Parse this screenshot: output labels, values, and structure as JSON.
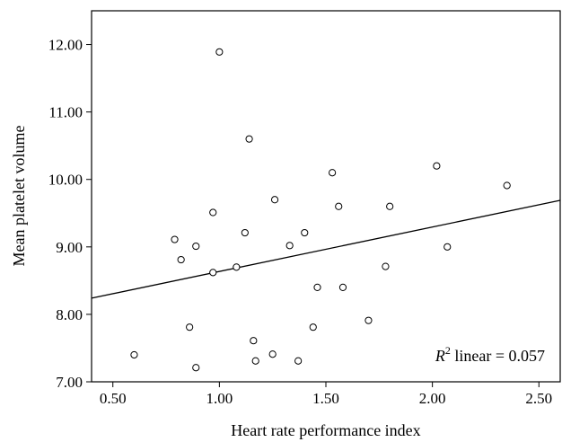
{
  "chart_data": {
    "type": "scatter",
    "title": "",
    "xlabel": "Heart rate performance index",
    "ylabel": "Mean platelet volume",
    "xlim": [
      0.4,
      2.6
    ],
    "ylim": [
      7.0,
      12.5
    ],
    "x_ticks": [
      "0.50",
      "1.00",
      "1.50",
      "2.00",
      "2.50"
    ],
    "y_ticks": [
      "7.00",
      "8.00",
      "9.00",
      "10.00",
      "11.00",
      "12.00"
    ],
    "grid": false,
    "marker": "open-circle",
    "points": [
      {
        "x": 0.6,
        "y": 7.4
      },
      {
        "x": 0.79,
        "y": 9.11
      },
      {
        "x": 0.82,
        "y": 8.81
      },
      {
        "x": 0.86,
        "y": 7.81
      },
      {
        "x": 0.89,
        "y": 9.01
      },
      {
        "x": 0.89,
        "y": 7.21
      },
      {
        "x": 0.97,
        "y": 9.51
      },
      {
        "x": 0.97,
        "y": 8.62
      },
      {
        "x": 1.0,
        "y": 11.89
      },
      {
        "x": 1.08,
        "y": 8.7
      },
      {
        "x": 1.12,
        "y": 9.21
      },
      {
        "x": 1.14,
        "y": 10.6
      },
      {
        "x": 1.16,
        "y": 7.61
      },
      {
        "x": 1.17,
        "y": 7.31
      },
      {
        "x": 1.25,
        "y": 7.41
      },
      {
        "x": 1.26,
        "y": 9.7
      },
      {
        "x": 1.33,
        "y": 9.02
      },
      {
        "x": 1.37,
        "y": 7.31
      },
      {
        "x": 1.4,
        "y": 9.21
      },
      {
        "x": 1.44,
        "y": 7.81
      },
      {
        "x": 1.46,
        "y": 8.4
      },
      {
        "x": 1.53,
        "y": 10.1
      },
      {
        "x": 1.56,
        "y": 9.6
      },
      {
        "x": 1.58,
        "y": 8.4
      },
      {
        "x": 1.7,
        "y": 7.91
      },
      {
        "x": 1.78,
        "y": 8.71
      },
      {
        "x": 1.8,
        "y": 9.6
      },
      {
        "x": 2.02,
        "y": 10.2
      },
      {
        "x": 2.07,
        "y": 9.0
      },
      {
        "x": 2.35,
        "y": 9.91
      }
    ],
    "fit_line": {
      "type": "linear",
      "x": [
        0.4,
        2.6
      ],
      "y": [
        8.24,
        9.69
      ]
    },
    "annotation": {
      "label_main": "R",
      "superscript": "2",
      "label_rest": " linear = 0.057"
    }
  }
}
